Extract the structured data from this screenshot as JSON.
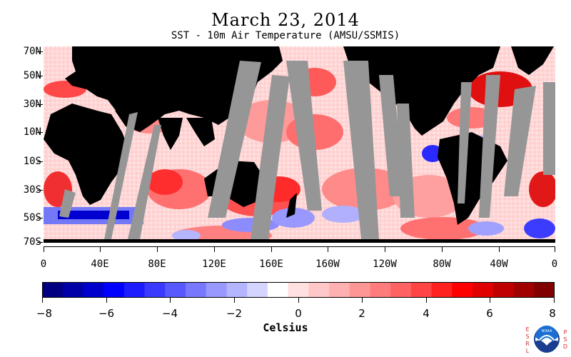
{
  "header": {
    "title": "March 23, 2014",
    "subtitle": "SST - 10m Air Temperature (AMSU/SSMIS)"
  },
  "map": {
    "lat_labels": [
      "70N",
      "50N",
      "30N",
      "10N",
      "10S",
      "30S",
      "50S",
      "70S"
    ],
    "lon_labels": [
      "0",
      "40E",
      "80E",
      "120E",
      "160E",
      "160W",
      "120W",
      "80W",
      "40W",
      "0"
    ],
    "land_color": "#000000",
    "missing_color": "#969696"
  },
  "colorbar": {
    "title": "Celsius",
    "tick_labels": [
      "−8",
      "−6",
      "−4",
      "−2",
      "0",
      "2",
      "4",
      "6",
      "8"
    ],
    "range": [
      -8,
      8
    ],
    "colors": [
      "#000080",
      "#0000a8",
      "#0000cd",
      "#0000ff",
      "#1c1cff",
      "#3a3aff",
      "#5858ff",
      "#7878ff",
      "#9898ff",
      "#b4b4ff",
      "#d4d4ff",
      "#ffffff",
      "#ffe0e0",
      "#ffc8c8",
      "#ffb0b0",
      "#ff9696",
      "#ff7c7c",
      "#ff6262",
      "#ff4444",
      "#ff2020",
      "#ff0000",
      "#e00000",
      "#c00000",
      "#a00000",
      "#800000"
    ]
  },
  "logo": {
    "left_text": "ESRL",
    "right_text": "PSD",
    "center_text": "NOAA"
  }
}
